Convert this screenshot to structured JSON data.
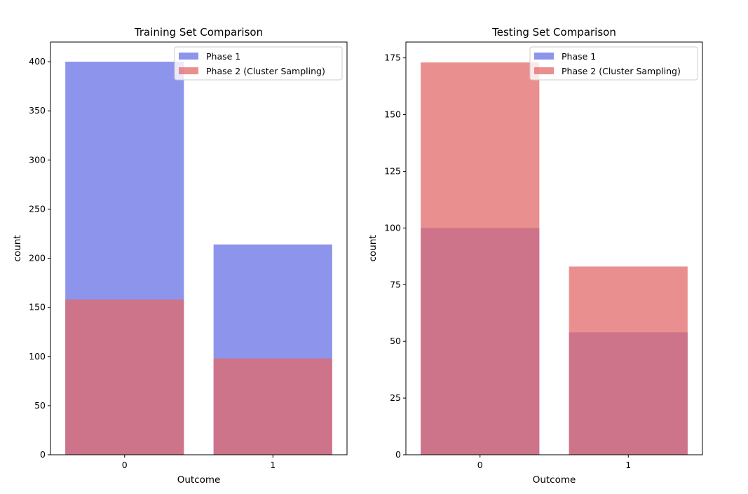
{
  "colors": {
    "phase1": "#6670e6",
    "phase2": "#e36a6a",
    "phase1_opacity": 0.75,
    "phase2_opacity": 0.75,
    "axis": "#000000"
  },
  "chart_data": [
    {
      "type": "bar",
      "title": "Training Set Comparison",
      "xlabel": "Outcome",
      "ylabel": "count",
      "categories": [
        "0",
        "1"
      ],
      "ylim": [
        0,
        420
      ],
      "yticks": [
        0,
        50,
        100,
        150,
        200,
        250,
        300,
        350,
        400
      ],
      "series": [
        {
          "name": "Phase 1",
          "color_key": "phase1",
          "values": [
            400,
            214
          ]
        },
        {
          "name": "Phase 2 (Cluster Sampling)",
          "color_key": "phase2",
          "values": [
            158,
            98
          ]
        }
      ],
      "legend": "top-right",
      "grid": false
    },
    {
      "type": "bar",
      "title": "Testing Set Comparison",
      "xlabel": "Outcome",
      "ylabel": "count",
      "categories": [
        "0",
        "1"
      ],
      "ylim": [
        0,
        182
      ],
      "yticks": [
        0,
        25,
        50,
        75,
        100,
        125,
        150,
        175
      ],
      "series": [
        {
          "name": "Phase 1",
          "color_key": "phase1",
          "values": [
            100,
            54
          ]
        },
        {
          "name": "Phase 2 (Cluster Sampling)",
          "color_key": "phase2",
          "values": [
            173,
            83
          ]
        }
      ],
      "legend": "top-right",
      "grid": false
    }
  ]
}
